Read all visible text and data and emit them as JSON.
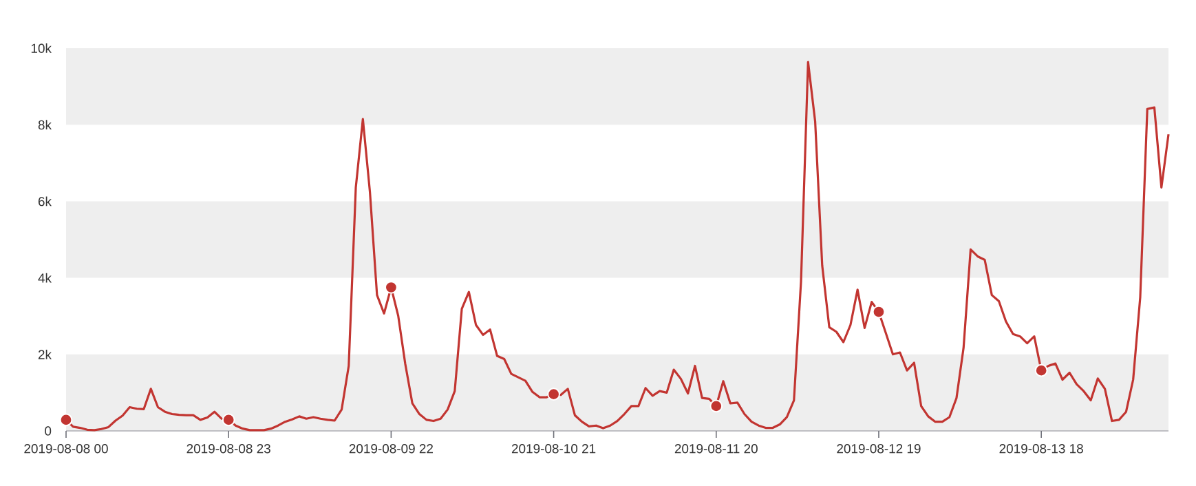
{
  "chart_data": {
    "type": "line",
    "line_style": "solid",
    "xlim": [
      "2019-08-08T00:00",
      "2019-08-14T12:00"
    ],
    "ylim": [
      0,
      10000
    ],
    "xticks": [
      {
        "value": "2019-08-08T00:00",
        "label": "2019-08-08 00"
      },
      {
        "value": "2019-08-08T23:00",
        "label": "2019-08-08 23"
      },
      {
        "value": "2019-08-09T22:00",
        "label": "2019-08-09 22"
      },
      {
        "value": "2019-08-10T21:00",
        "label": "2019-08-10 21"
      },
      {
        "value": "2019-08-11T20:00",
        "label": "2019-08-11 20"
      },
      {
        "value": "2019-08-12T19:00",
        "label": "2019-08-12 19"
      },
      {
        "value": "2019-08-13T18:00",
        "label": "2019-08-13 18"
      }
    ],
    "yticks": [
      0,
      {
        "value": 2000,
        "label": "2k"
      },
      {
        "value": 4000,
        "label": "4k"
      },
      {
        "value": 6000,
        "label": "6k"
      },
      {
        "value": 8000,
        "label": "8k"
      },
      {
        "value": 10000,
        "label": "10k"
      }
    ],
    "bands": [
      {
        "axis": "y",
        "from": 0,
        "to": 2000,
        "color": "#eeeeee"
      },
      {
        "axis": "y",
        "from": 4000,
        "to": 6000,
        "color": "#eeeeee"
      },
      {
        "axis": "y",
        "from": 8000,
        "to": 10000,
        "color": "#eeeeee"
      }
    ],
    "series": [
      {
        "color": "#c23531",
        "x": [
          "2019-08-08T00:00",
          "2019-08-08T01:00",
          "2019-08-08T02:00",
          "2019-08-08T03:00",
          "2019-08-08T04:00",
          "2019-08-08T05:00",
          "2019-08-08T06:00",
          "2019-08-08T07:00",
          "2019-08-08T08:00",
          "2019-08-08T09:00",
          "2019-08-08T10:00",
          "2019-08-08T11:00",
          "2019-08-08T12:00",
          "2019-08-08T13:00",
          "2019-08-08T14:00",
          "2019-08-08T15:00",
          "2019-08-08T16:00",
          "2019-08-08T17:00",
          "2019-08-08T18:00",
          "2019-08-08T19:00",
          "2019-08-08T20:00",
          "2019-08-08T21:00",
          "2019-08-08T22:00",
          "2019-08-08T23:00",
          "2019-08-09T00:00",
          "2019-08-09T01:00",
          "2019-08-09T02:00",
          "2019-08-09T03:00",
          "2019-08-09T04:00",
          "2019-08-09T05:00",
          "2019-08-09T06:00",
          "2019-08-09T07:00",
          "2019-08-09T08:00",
          "2019-08-09T09:00",
          "2019-08-09T10:00",
          "2019-08-09T11:00",
          "2019-08-09T12:00",
          "2019-08-09T13:00",
          "2019-08-09T14:00",
          "2019-08-09T15:00",
          "2019-08-09T16:00",
          "2019-08-09T17:00",
          "2019-08-09T18:00",
          "2019-08-09T19:00",
          "2019-08-09T20:00",
          "2019-08-09T21:00",
          "2019-08-09T22:00",
          "2019-08-09T23:00",
          "2019-08-10T00:00",
          "2019-08-10T01:00",
          "2019-08-10T02:00",
          "2019-08-10T03:00",
          "2019-08-10T04:00",
          "2019-08-10T05:00",
          "2019-08-10T06:00",
          "2019-08-10T07:00",
          "2019-08-10T08:00",
          "2019-08-10T09:00",
          "2019-08-10T10:00",
          "2019-08-10T11:00",
          "2019-08-10T12:00",
          "2019-08-10T13:00",
          "2019-08-10T14:00",
          "2019-08-10T15:00",
          "2019-08-10T16:00",
          "2019-08-10T17:00",
          "2019-08-10T18:00",
          "2019-08-10T19:00",
          "2019-08-10T20:00",
          "2019-08-10T21:00",
          "2019-08-10T22:00",
          "2019-08-10T23:00",
          "2019-08-11T00:00",
          "2019-08-11T01:00",
          "2019-08-11T02:00",
          "2019-08-11T03:00",
          "2019-08-11T04:00",
          "2019-08-11T05:00",
          "2019-08-11T06:00",
          "2019-08-11T07:00",
          "2019-08-11T08:00",
          "2019-08-11T09:00",
          "2019-08-11T10:00",
          "2019-08-11T11:00",
          "2019-08-11T12:00",
          "2019-08-11T13:00",
          "2019-08-11T14:00",
          "2019-08-11T15:00",
          "2019-08-11T16:00",
          "2019-08-11T17:00",
          "2019-08-11T18:00",
          "2019-08-11T19:00",
          "2019-08-11T20:00",
          "2019-08-11T21:00",
          "2019-08-11T22:00",
          "2019-08-11T23:00",
          "2019-08-12T00:00",
          "2019-08-12T01:00",
          "2019-08-12T02:00",
          "2019-08-12T03:00",
          "2019-08-12T04:00",
          "2019-08-12T05:00",
          "2019-08-12T06:00",
          "2019-08-12T07:00",
          "2019-08-12T08:00",
          "2019-08-12T09:00",
          "2019-08-12T10:00",
          "2019-08-12T11:00",
          "2019-08-12T12:00",
          "2019-08-12T13:00",
          "2019-08-12T14:00",
          "2019-08-12T15:00",
          "2019-08-12T16:00",
          "2019-08-12T17:00",
          "2019-08-12T18:00",
          "2019-08-12T19:00",
          "2019-08-12T20:00",
          "2019-08-12T21:00",
          "2019-08-12T22:00",
          "2019-08-12T23:00",
          "2019-08-13T00:00",
          "2019-08-13T01:00",
          "2019-08-13T02:00",
          "2019-08-13T03:00",
          "2019-08-13T04:00",
          "2019-08-13T05:00",
          "2019-08-13T06:00",
          "2019-08-13T07:00",
          "2019-08-13T08:00",
          "2019-08-13T09:00",
          "2019-08-13T10:00",
          "2019-08-13T11:00",
          "2019-08-13T12:00",
          "2019-08-13T13:00",
          "2019-08-13T14:00",
          "2019-08-13T15:00",
          "2019-08-13T16:00",
          "2019-08-13T17:00",
          "2019-08-13T18:00",
          "2019-08-13T19:00",
          "2019-08-13T20:00",
          "2019-08-13T21:00",
          "2019-08-13T22:00",
          "2019-08-13T23:00",
          "2019-08-14T00:00",
          "2019-08-14T01:00",
          "2019-08-14T02:00",
          "2019-08-14T03:00",
          "2019-08-14T04:00",
          "2019-08-14T05:00",
          "2019-08-14T06:00",
          "2019-08-14T07:00",
          "2019-08-14T08:00",
          "2019-08-14T09:00",
          "2019-08-14T10:00",
          "2019-08-14T11:00",
          "2019-08-14T12:00"
        ],
        "values": [
          290,
          110,
          80,
          30,
          20,
          50,
          100,
          270,
          400,
          620,
          580,
          570,
          1100,
          620,
          500,
          440,
          420,
          410,
          410,
          290,
          350,
          500,
          320,
          290,
          140,
          60,
          20,
          20,
          20,
          60,
          140,
          240,
          300,
          380,
          320,
          360,
          320,
          290,
          270,
          560,
          1700,
          6360,
          8150,
          6240,
          3550,
          3070,
          3750,
          3010,
          1750,
          720,
          440,
          290,
          260,
          320,
          560,
          1040,
          3190,
          3630,
          2770,
          2510,
          2650,
          1960,
          1880,
          1490,
          1400,
          1310,
          1020,
          880,
          880,
          960,
          940,
          1100,
          410,
          240,
          120,
          140,
          70,
          140,
          260,
          440,
          650,
          650,
          1120,
          920,
          1040,
          1000,
          1600,
          1360,
          980,
          1700,
          860,
          840,
          650,
          1300,
          720,
          740,
          440,
          240,
          140,
          80,
          80,
          170,
          360,
          800,
          3900,
          9640,
          8090,
          4320,
          2710,
          2590,
          2320,
          2770,
          3690,
          2690,
          3370,
          3110,
          2560,
          2000,
          2050,
          1580,
          1780,
          650,
          380,
          240,
          240,
          360,
          860,
          2170,
          4740,
          4560,
          4470,
          3550,
          3390,
          2860,
          2530,
          2470,
          2290,
          2470,
          1580,
          1700,
          1760,
          1340,
          1520,
          1220,
          1040,
          800,
          1370,
          1100,
          260,
          290,
          500,
          1340,
          3490,
          8410,
          8450,
          6360,
          7750
        ]
      },
      {
        "type": "scatter",
        "color": "#c23531",
        "x": [
          "2019-08-08T00:00",
          "2019-08-08T23:00",
          "2019-08-09T22:00",
          "2019-08-10T21:00",
          "2019-08-11T20:00",
          "2019-08-12T19:00",
          "2019-08-13T18:00"
        ],
        "values": [
          290,
          290,
          3750,
          960,
          650,
          3110,
          1580
        ]
      }
    ]
  }
}
